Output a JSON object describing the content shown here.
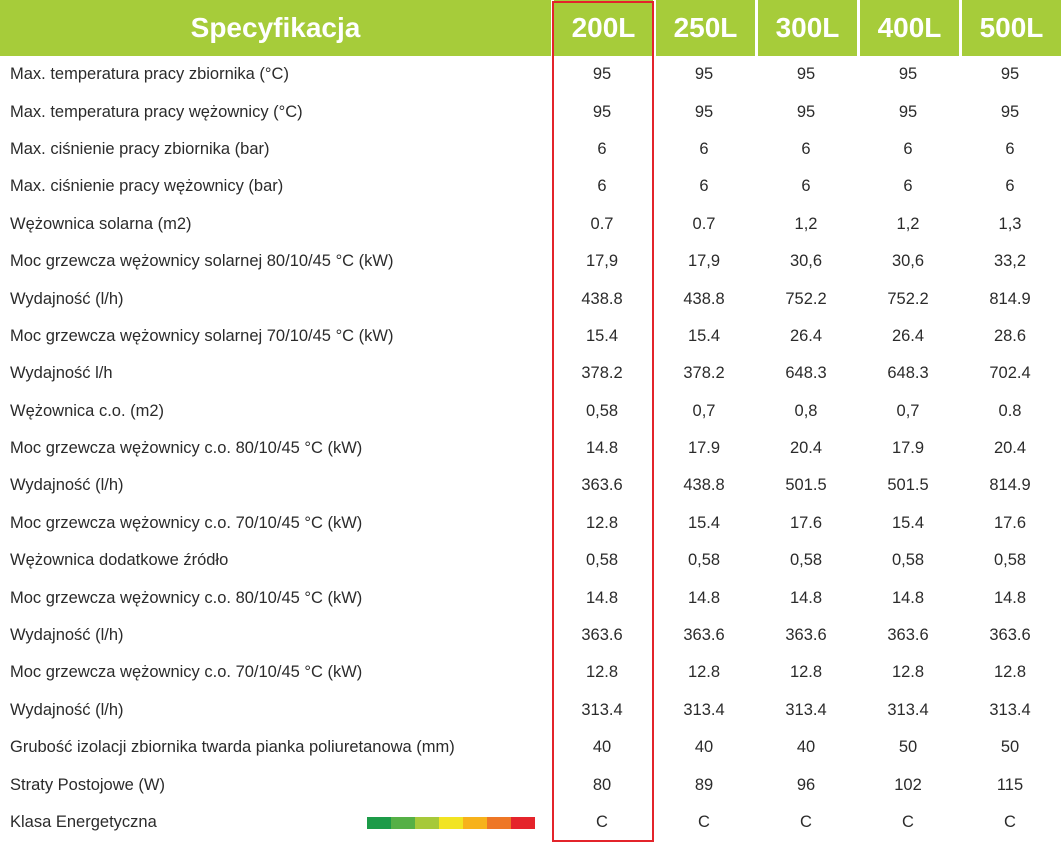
{
  "header": {
    "title": "Specyfikacja",
    "models": [
      "200L",
      "250L",
      "300L",
      "400L",
      "500L"
    ]
  },
  "rows": [
    {
      "label": "Max. temperatura pracy zbiornika (°C)",
      "values": [
        "95",
        "95",
        "95",
        "95",
        "95"
      ]
    },
    {
      "label": "Max. temperatura pracy wężownicy (°C)",
      "values": [
        "95",
        "95",
        "95",
        "95",
        "95"
      ]
    },
    {
      "label": "Max. ciśnienie pracy zbiornika (bar)",
      "values": [
        "6",
        "6",
        "6",
        "6",
        "6"
      ]
    },
    {
      "label": "Max. ciśnienie pracy wężownicy (bar)",
      "values": [
        "6",
        "6",
        "6",
        "6",
        "6"
      ]
    },
    {
      "label": "Wężownica solarna (m2)",
      "values": [
        "0.7",
        "0.7",
        "1,2",
        "1,2",
        "1,3"
      ]
    },
    {
      "label": "Moc grzewcza wężownicy solarnej 80/10/45 °C (kW)",
      "values": [
        "17,9",
        "17,9",
        "30,6",
        "30,6",
        "33,2"
      ]
    },
    {
      "label": "Wydajność (l/h)",
      "values": [
        "438.8",
        "438.8",
        "752.2",
        "752.2",
        "814.9"
      ]
    },
    {
      "label": "Moc grzewcza wężownicy solarnej 70/10/45 °C (kW)",
      "values": [
        "15.4",
        "15.4",
        "26.4",
        "26.4",
        "28.6"
      ]
    },
    {
      "label": "Wydajność l/h",
      "values": [
        "378.2",
        "378.2",
        "648.3",
        "648.3",
        "702.4"
      ]
    },
    {
      "label": "Wężownica c.o. (m2)",
      "values": [
        "0,58",
        "0,7",
        "0,8",
        "0,7",
        "0.8"
      ]
    },
    {
      "label": "Moc grzewcza wężownicy c.o. 80/10/45 °C (kW)",
      "values": [
        "14.8",
        "17.9",
        "20.4",
        "17.9",
        "20.4"
      ]
    },
    {
      "label": "Wydajność (l/h)",
      "values": [
        "363.6",
        "438.8",
        "501.5",
        "501.5",
        "814.9"
      ]
    },
    {
      "label": "Moc grzewcza wężownicy c.o. 70/10/45 °C (kW)",
      "values": [
        "12.8",
        "15.4",
        "17.6",
        "15.4",
        "17.6"
      ]
    },
    {
      "label": "Wężownica dodatkowe źródło",
      "values": [
        "0,58",
        "0,58",
        "0,58",
        "0,58",
        "0,58"
      ]
    },
    {
      "label": "Moc grzewcza wężownicy c.o. 80/10/45 °C (kW)",
      "values": [
        "14.8",
        "14.8",
        "14.8",
        "14.8",
        "14.8"
      ]
    },
    {
      "label": "Wydajność (l/h)",
      "values": [
        "363.6",
        "363.6",
        "363.6",
        "363.6",
        "363.6"
      ]
    },
    {
      "label": "Moc grzewcza wężownicy c.o. 70/10/45 °C (kW)",
      "values": [
        "12.8",
        "12.8",
        "12.8",
        "12.8",
        "12.8"
      ]
    },
    {
      "label": "Wydajność (l/h)",
      "values": [
        "313.4",
        "313.4",
        "313.4",
        "313.4",
        "313.4"
      ]
    },
    {
      "label": "Grubość izolacji zbiornika twarda pianka poliuretanowa (mm)",
      "values": [
        "40",
        "40",
        "40",
        "50",
        "50"
      ]
    },
    {
      "label": "Straty Postojowe (W)",
      "values": [
        "80",
        "89",
        "96",
        "102",
        "115"
      ]
    },
    {
      "label": "Klasa Energetyczna",
      "values": [
        "C",
        "C",
        "C",
        "C",
        "C"
      ],
      "energy_scale": true
    }
  ],
  "energy_scale_colors": [
    "#1c9b48",
    "#55b046",
    "#a6c93a",
    "#f2e422",
    "#f7b21b",
    "#ee7726",
    "#e5242b"
  ],
  "colors": {
    "header_bg": "#a6cc3a",
    "header_text": "#ffffff",
    "highlight_border": "#e3242b",
    "body_text": "#2b2b2b"
  }
}
